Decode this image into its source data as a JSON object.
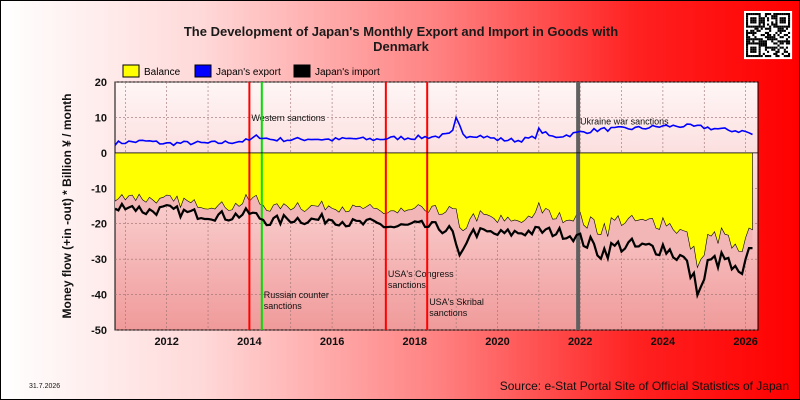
{
  "chart_data": {
    "type": "line",
    "title_line1": "The Development of Japan's Monthly Export and Import in Goods with",
    "title_line2": "Denmark",
    "ylabel": "Money flow (+in -out) * Billion ¥ / month",
    "xlabel": "",
    "ylim": [
      -50,
      20
    ],
    "yticks": [
      20,
      10,
      0,
      -10,
      -20,
      -30,
      -40,
      -50
    ],
    "xlim": [
      2010.75,
      2026.3
    ],
    "xticks": [
      2012,
      2014,
      2016,
      2018,
      2020,
      2022,
      2024,
      2026
    ],
    "grid": true,
    "legend_position": "top-left",
    "legend": [
      {
        "label": "Balance",
        "color": "#ffff00"
      },
      {
        "label": "Japan's export",
        "color": "#0000ff"
      },
      {
        "label": "Japan's import",
        "color": "#000000"
      }
    ],
    "export_points": [
      [
        2010.75,
        2.7
      ],
      [
        2011.0,
        3.0
      ],
      [
        2011.5,
        3.3
      ],
      [
        2012.0,
        2.6
      ],
      [
        2012.5,
        2.8
      ],
      [
        2013.0,
        2.7
      ],
      [
        2013.5,
        3.0
      ],
      [
        2014.0,
        3.5
      ],
      [
        2014.2,
        4.8
      ],
      [
        2014.5,
        3.8
      ],
      [
        2015.0,
        3.7
      ],
      [
        2015.5,
        4.0
      ],
      [
        2016.0,
        3.7
      ],
      [
        2016.5,
        4.0
      ],
      [
        2017.0,
        3.8
      ],
      [
        2017.5,
        4.2
      ],
      [
        2018.0,
        4.3
      ],
      [
        2018.5,
        4.6
      ],
      [
        2018.9,
        5.2
      ],
      [
        2019.0,
        9.5
      ],
      [
        2019.2,
        4.8
      ],
      [
        2019.5,
        5.0
      ],
      [
        2020.0,
        3.8
      ],
      [
        2020.5,
        3.5
      ],
      [
        2020.9,
        4.3
      ],
      [
        2021.0,
        6.5
      ],
      [
        2021.3,
        4.5
      ],
      [
        2021.7,
        5.0
      ],
      [
        2022.0,
        5.8
      ],
      [
        2022.5,
        6.6
      ],
      [
        2023.0,
        6.8
      ],
      [
        2023.5,
        7.0
      ],
      [
        2024.0,
        7.5
      ],
      [
        2024.5,
        7.6
      ],
      [
        2025.0,
        7.2
      ],
      [
        2025.5,
        6.5
      ],
      [
        2026.0,
        6.0
      ],
      [
        2026.2,
        5.0
      ]
    ],
    "import_points": [
      [
        2010.75,
        -16.5
      ],
      [
        2011.0,
        -14.5
      ],
      [
        2011.5,
        -16.5
      ],
      [
        2012.0,
        -16.0
      ],
      [
        2012.5,
        -17.0
      ],
      [
        2013.0,
        -17.5
      ],
      [
        2013.5,
        -18.0
      ],
      [
        2014.0,
        -17.0
      ],
      [
        2014.5,
        -19.5
      ],
      [
        2015.0,
        -18.5
      ],
      [
        2015.5,
        -19.0
      ],
      [
        2016.0,
        -18.5
      ],
      [
        2016.5,
        -20.0
      ],
      [
        2017.0,
        -20.0
      ],
      [
        2017.5,
        -21.0
      ],
      [
        2018.0,
        -20.5
      ],
      [
        2018.5,
        -21.0
      ],
      [
        2018.9,
        -22.0
      ],
      [
        2019.1,
        -31.0
      ],
      [
        2019.3,
        -22.5
      ],
      [
        2019.7,
        -22.5
      ],
      [
        2020.0,
        -23.0
      ],
      [
        2020.5,
        -22.5
      ],
      [
        2021.0,
        -22.0
      ],
      [
        2021.5,
        -22.5
      ],
      [
        2022.0,
        -24.0
      ],
      [
        2022.5,
        -28.0
      ],
      [
        2023.0,
        -26.0
      ],
      [
        2023.5,
        -27.0
      ],
      [
        2024.0,
        -26.5
      ],
      [
        2024.5,
        -30.0
      ],
      [
        2024.9,
        -39.5
      ],
      [
        2025.1,
        -31.0
      ],
      [
        2025.5,
        -30.0
      ],
      [
        2025.9,
        -36.0
      ],
      [
        2026.1,
        -28.0
      ],
      [
        2026.2,
        -24.0
      ]
    ],
    "vertical_markers": [
      {
        "x": 2014.0,
        "color": "#ff0000",
        "label": "Western sanctions",
        "label_y": 9
      },
      {
        "x": 2014.3,
        "color": "#00dd00",
        "label": "Russian counter sanctions",
        "label_y": -41
      },
      {
        "x": 2017.3,
        "color": "#ff0000",
        "label": "USA's Congress sanctions",
        "label_y": -35
      },
      {
        "x": 2018.3,
        "color": "#ff0000",
        "label": "USA's Skribal sanctions",
        "label_y": -43
      },
      {
        "x": 2021.95,
        "color": "#606060",
        "label": "Ukraine war sanctions",
        "label_y": 8
      }
    ]
  },
  "footer": {
    "date": "31.7.2026",
    "source": "Source: e-Stat Portal Site of Official Statistics of Japan"
  }
}
